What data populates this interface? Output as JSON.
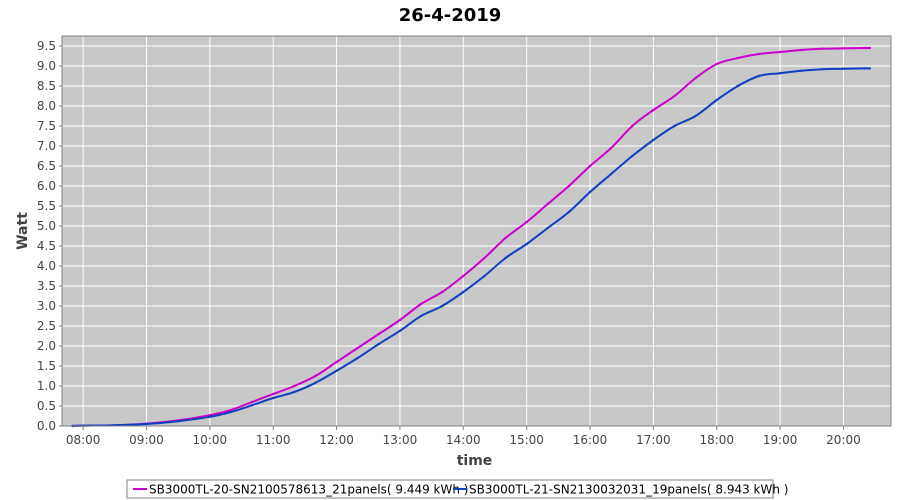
{
  "chart_data": {
    "type": "line",
    "title": "26-4-2019",
    "xlabel": "time",
    "ylabel": "Watt",
    "xlim": [
      "07:40",
      "20:45"
    ],
    "ylim": [
      0,
      9.75
    ],
    "x_ticks": [
      "08:00",
      "09:00",
      "10:00",
      "11:00",
      "12:00",
      "13:00",
      "14:00",
      "15:00",
      "16:00",
      "17:00",
      "18:00",
      "19:00",
      "20:00"
    ],
    "y_ticks": [
      "0.0",
      "0.5",
      "1.0",
      "1.5",
      "2.0",
      "2.5",
      "3.0",
      "3.5",
      "4.0",
      "4.5",
      "5.0",
      "5.5",
      "6.0",
      "6.5",
      "7.0",
      "7.5",
      "8.0",
      "8.5",
      "9.0",
      "9.5"
    ],
    "grid": true,
    "legend_position": "bottom",
    "background_color": "#c8c8c8",
    "series": [
      {
        "name": "SB3000TL-20-SN2100578613_21panels( 9.449 kWh )",
        "color": "#cc00cc",
        "x": [
          "07:50",
          "08:00",
          "08:30",
          "09:00",
          "09:30",
          "10:00",
          "10:20",
          "10:40",
          "11:00",
          "11:20",
          "11:40",
          "12:00",
          "12:20",
          "12:40",
          "13:00",
          "13:20",
          "13:40",
          "14:00",
          "14:20",
          "14:40",
          "15:00",
          "15:20",
          "15:40",
          "16:00",
          "16:20",
          "16:40",
          "17:00",
          "17:20",
          "17:40",
          "18:00",
          "18:20",
          "18:40",
          "19:00",
          "19:20",
          "19:40",
          "20:00",
          "20:20",
          "20:25"
        ],
        "values": [
          0.0,
          0.01,
          0.02,
          0.06,
          0.14,
          0.27,
          0.4,
          0.6,
          0.8,
          1.0,
          1.25,
          1.6,
          1.95,
          2.3,
          2.65,
          3.05,
          3.35,
          3.75,
          4.2,
          4.7,
          5.1,
          5.55,
          6.0,
          6.5,
          6.95,
          7.5,
          7.9,
          8.25,
          8.7,
          9.05,
          9.2,
          9.3,
          9.35,
          9.4,
          9.43,
          9.44,
          9.45,
          9.45
        ]
      },
      {
        "name": "SB3000TL-21-SN2130032031_19panels( 8.943 kWh )",
        "color": "#1040c0",
        "x": [
          "07:50",
          "08:00",
          "08:30",
          "09:00",
          "09:30",
          "10:00",
          "10:20",
          "10:40",
          "11:00",
          "11:20",
          "11:40",
          "12:00",
          "12:20",
          "12:40",
          "13:00",
          "13:20",
          "13:40",
          "14:00",
          "14:20",
          "14:40",
          "15:00",
          "15:20",
          "15:40",
          "16:00",
          "16:20",
          "16:40",
          "17:00",
          "17:20",
          "17:40",
          "18:00",
          "18:20",
          "18:40",
          "19:00",
          "19:20",
          "19:40",
          "20:00",
          "20:20",
          "20:25"
        ],
        "values": [
          0.0,
          0.01,
          0.02,
          0.05,
          0.12,
          0.23,
          0.35,
          0.52,
          0.7,
          0.85,
          1.08,
          1.38,
          1.7,
          2.05,
          2.38,
          2.75,
          3.0,
          3.35,
          3.75,
          4.2,
          4.55,
          4.95,
          5.35,
          5.85,
          6.3,
          6.75,
          7.15,
          7.5,
          7.75,
          8.15,
          8.5,
          8.75,
          8.82,
          8.88,
          8.92,
          8.93,
          8.94,
          8.94
        ]
      }
    ]
  }
}
